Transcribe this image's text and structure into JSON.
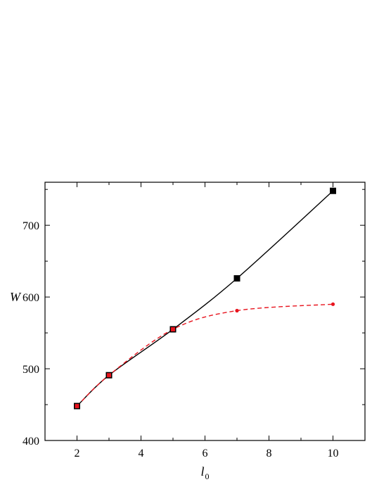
{
  "chart_data": {
    "type": "line",
    "xlabel": "l",
    "xlabel_subscript": "0",
    "ylabel": "W",
    "xlim": [
      1,
      11
    ],
    "ylim": [
      400,
      760
    ],
    "x_ticks": [
      2,
      4,
      6,
      8,
      10
    ],
    "y_ticks": [
      400,
      500,
      600,
      700
    ],
    "grid": false,
    "legend": "none",
    "series": [
      {
        "marker": "square",
        "line_style": "solid",
        "color": "#000000",
        "x": [
          2,
          3,
          5,
          7,
          10
        ],
        "y": [
          448,
          491,
          555,
          626,
          748
        ]
      },
      {
        "marker": "circle",
        "line_style": "dashed",
        "color": "#e8141e",
        "x": [
          2,
          3,
          5,
          7,
          10
        ],
        "y": [
          448,
          491,
          555,
          581,
          590
        ]
      }
    ]
  }
}
